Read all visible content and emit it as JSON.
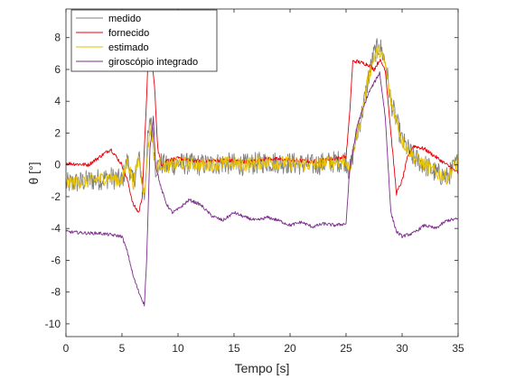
{
  "chart_data": {
    "type": "line",
    "title": "",
    "xlabel": "Tempo [s]",
    "ylabel": "θ [°]",
    "xlim": [
      0,
      35
    ],
    "ylim": [
      -10.8,
      9.8
    ],
    "xticks": [
      0,
      5,
      10,
      15,
      20,
      25,
      30,
      35
    ],
    "yticks": [
      -10,
      -8,
      -6,
      -4,
      -2,
      0,
      2,
      4,
      6,
      8
    ],
    "grid": false,
    "legend_position": "top-left",
    "series": [
      {
        "name": "medido",
        "color": "#808080",
        "noise": 0.7,
        "x": [
          0,
          2,
          4,
          5,
          5.5,
          6,
          6.5,
          7,
          7.3,
          7.6,
          8,
          8.5,
          9,
          10,
          12,
          14,
          16,
          18,
          20,
          22,
          24,
          25,
          25.3,
          25.7,
          26,
          26.5,
          27,
          27.5,
          28,
          28.5,
          29,
          30,
          31,
          32,
          33,
          34,
          35
        ],
        "y": [
          -1.2,
          -1.0,
          -0.8,
          -1.0,
          0.3,
          -1.2,
          0.5,
          -2.0,
          1.5,
          3.0,
          -0.2,
          0.1,
          -0.1,
          0.1,
          0.0,
          0.1,
          0.0,
          0.2,
          0.1,
          0.0,
          0.2,
          0.3,
          -0.5,
          1.0,
          2.0,
          3.5,
          5.5,
          7.0,
          7.5,
          6.5,
          4.0,
          1.5,
          0.5,
          0.0,
          -0.5,
          -0.8,
          0.2
        ]
      },
      {
        "name": "fornecido",
        "color": "#e8000b",
        "noise": 0.12,
        "x": [
          0,
          2,
          3,
          4,
          5,
          5.5,
          6,
          6.5,
          6.8,
          7,
          7.3,
          7.6,
          7.9,
          8.2,
          8.5,
          9,
          10,
          12,
          14,
          16,
          18,
          20,
          22,
          24,
          25,
          25.3,
          25.6,
          26,
          27,
          27.5,
          28,
          28.5,
          29,
          29.5,
          30,
          30.5,
          31,
          32,
          33,
          34,
          35
        ],
        "y": [
          0.1,
          0.0,
          0.5,
          1.0,
          0.0,
          -1.0,
          -2.5,
          -3.0,
          -2.0,
          1.0,
          6.0,
          6.8,
          5.0,
          1.0,
          0.0,
          0.3,
          0.4,
          0.2,
          0.3,
          0.2,
          0.4,
          0.3,
          0.2,
          0.4,
          0.5,
          3.0,
          6.5,
          6.5,
          6.3,
          6.0,
          6.6,
          6.0,
          2.0,
          -1.8,
          -1.0,
          0.5,
          1.2,
          1.0,
          0.5,
          0.0,
          -0.5
        ]
      },
      {
        "name": "estimado",
        "color": "#e6c200",
        "noise": 0.45,
        "x": [
          0,
          2,
          4,
          5,
          5.5,
          6,
          6.5,
          7,
          7.3,
          7.6,
          8,
          8.5,
          9,
          10,
          12,
          14,
          16,
          18,
          20,
          22,
          24,
          25,
          25.3,
          25.7,
          26,
          26.5,
          27,
          27.5,
          28,
          28.5,
          29,
          30,
          31,
          32,
          33,
          34,
          35
        ],
        "y": [
          -1.2,
          -1.0,
          -0.8,
          -1.0,
          0.3,
          -1.2,
          0.5,
          -2.0,
          1.0,
          2.5,
          -0.2,
          0.1,
          -0.1,
          0.1,
          0.0,
          0.1,
          0.0,
          0.2,
          0.1,
          0.0,
          0.2,
          0.3,
          -0.5,
          1.0,
          2.0,
          3.5,
          5.5,
          6.8,
          7.2,
          6.3,
          4.0,
          1.5,
          0.5,
          0.0,
          -0.5,
          -0.8,
          0.2
        ]
      },
      {
        "name": "giroscópio integrado",
        "color": "#7e2f8e",
        "noise": 0.1,
        "x": [
          0,
          2,
          3,
          4,
          5,
          5.5,
          6,
          6.5,
          7,
          7.2,
          7.5,
          7.8,
          8,
          8.5,
          9,
          9.5,
          10,
          10.5,
          11,
          12,
          13,
          14,
          15,
          16,
          17,
          18,
          19,
          20,
          21,
          22,
          23,
          24,
          25,
          25.3,
          26,
          27,
          28,
          28.5,
          29,
          29.5,
          30,
          31,
          32,
          33,
          34,
          35
        ],
        "y": [
          -4.2,
          -4.3,
          -4.3,
          -4.4,
          -4.5,
          -5.5,
          -7.0,
          -8.0,
          -8.8,
          -6.0,
          1.0,
          3.0,
          0.0,
          -1.5,
          -2.5,
          -3.0,
          -2.8,
          -2.5,
          -2.2,
          -2.5,
          -3.2,
          -3.5,
          -3.0,
          -3.3,
          -3.5,
          -3.3,
          -3.5,
          -3.8,
          -3.6,
          -3.9,
          -3.7,
          -3.8,
          -3.7,
          -0.5,
          2.5,
          4.5,
          5.8,
          3.0,
          -3.0,
          -4.2,
          -4.5,
          -4.3,
          -3.8,
          -4.0,
          -3.5,
          -3.4
        ]
      }
    ]
  }
}
